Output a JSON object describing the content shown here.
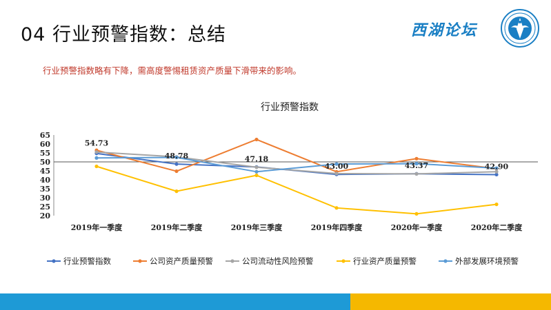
{
  "slide": {
    "title": "04 行业预警指数：总结",
    "subtitle": "行业预警指数略有下降，需高度警惕租赁资产质量下滑带来的影响。",
    "logo_text": "西湖论坛",
    "logo_color": "#1a7fc4",
    "footer_colors": [
      "#1e9ad6",
      "#f5b800"
    ]
  },
  "chart_data": {
    "type": "line",
    "title": "行业预警指数",
    "categories": [
      "2019年一季度",
      "2019年二季度",
      "2019年三季度",
      "2019年四季度",
      "2020年一季度",
      "2020年二季度"
    ],
    "yticks": [
      20,
      25,
      30,
      35,
      40,
      45,
      50,
      55,
      60,
      65
    ],
    "ylim": [
      20,
      65
    ],
    "reference_line": 50,
    "legend_position": "bottom",
    "series": [
      {
        "name": "行业预警指数",
        "color": "#4472c4",
        "values": [
          54.73,
          48.78,
          47.18,
          43.0,
          43.37,
          42.9
        ],
        "labels": [
          "54.73",
          "48.78",
          "47.18",
          "43.00",
          "43.37",
          "42.90"
        ]
      },
      {
        "name": "公司资产质量预警",
        "color": "#ed7d31",
        "values": [
          56.5,
          44.8,
          62.5,
          44.5,
          51.8,
          46.2
        ],
        "labels": []
      },
      {
        "name": "公司流动性风险预警",
        "color": "#a5a5a5",
        "values": [
          55.5,
          52.8,
          47.0,
          43.5,
          43.3,
          44.5
        ],
        "labels": []
      },
      {
        "name": "行业资产质量预警",
        "color": "#ffc000",
        "values": [
          47.5,
          33.6,
          42.5,
          24.3,
          21.0,
          26.3
        ],
        "labels": []
      },
      {
        "name": "外部发展环境预警",
        "color": "#5b9bd5",
        "values": [
          52.2,
          52.5,
          44.5,
          48.8,
          49.0,
          46.5
        ],
        "labels": []
      }
    ]
  }
}
